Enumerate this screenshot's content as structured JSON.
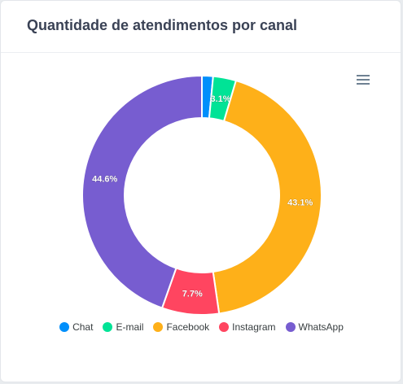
{
  "card": {
    "title": "Quantidade de atendimentos por canal"
  },
  "chart_data": {
    "type": "pie",
    "variant": "donut",
    "title": "Quantidade de atendimentos por canal",
    "categories": [
      "Chat",
      "E-mail",
      "Facebook",
      "Instagram",
      "WhatsApp"
    ],
    "values": [
      1.5,
      3.1,
      43.1,
      7.7,
      44.6
    ],
    "data_labels": [
      "",
      "3.1%",
      "43.1%",
      "7.7%",
      "44.6%"
    ],
    "colors": [
      "#008ffb",
      "#00e396",
      "#feb019",
      "#ff4560",
      "#775dd0"
    ],
    "legend_position": "bottom"
  },
  "menu": {
    "icon": "hamburger-menu-icon"
  }
}
